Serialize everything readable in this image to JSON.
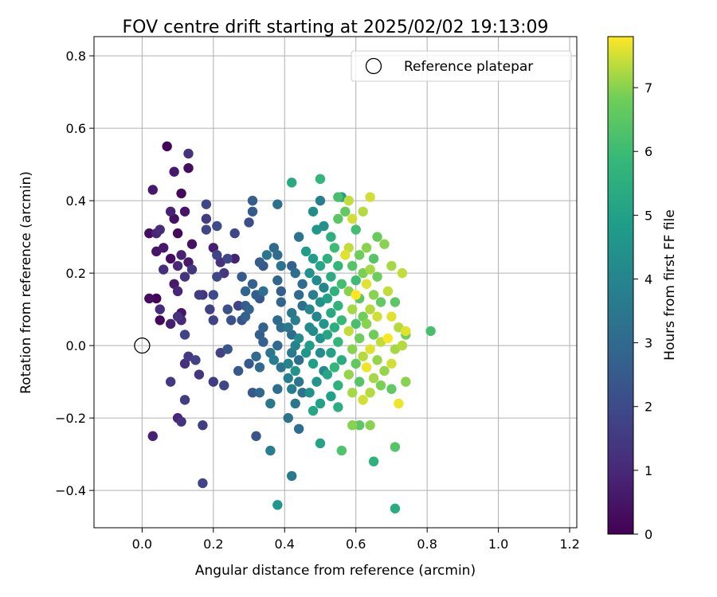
{
  "chart_data": {
    "type": "scatter",
    "title": "FOV centre drift starting at 2025/02/02 19:13:09",
    "xlabel": "Angular distance from reference (arcmin)",
    "ylabel": "Rotation from reference (arcmin)",
    "xlim": [
      -0.135,
      1.22
    ],
    "ylim": [
      -0.503,
      0.853
    ],
    "xticks": [
      0.0,
      0.2,
      0.4,
      0.6,
      0.8,
      1.0,
      1.2
    ],
    "xtick_labels": [
      "0.0",
      "0.2",
      "0.4",
      "0.6",
      "0.8",
      "1.0",
      "1.2"
    ],
    "yticks": [
      -0.4,
      -0.2,
      0.0,
      0.2,
      0.4,
      0.6,
      0.8
    ],
    "ytick_labels": [
      "−0.4",
      "−0.2",
      "0.0",
      "0.2",
      "0.4",
      "0.6",
      "0.8"
    ],
    "grid": true,
    "legend": {
      "placement": "top-right",
      "entries": [
        "Reference platepar"
      ]
    },
    "reference_point": {
      "name": "Reference platepar",
      "x": 0.0,
      "y": 0.0
    },
    "colorbar": {
      "label": "Hours from first FF file",
      "colormap": "viridis",
      "range": [
        0,
        7.8
      ],
      "ticks": [
        0,
        1,
        2,
        3,
        4,
        5,
        6,
        7
      ],
      "tick_labels": [
        "0",
        "1",
        "2",
        "3",
        "4",
        "5",
        "6",
        "7"
      ]
    },
    "points": [
      [
        0.07,
        0.55,
        0.1
      ],
      [
        0.13,
        0.53,
        1.3
      ],
      [
        0.13,
        0.49,
        0.3
      ],
      [
        0.09,
        0.48,
        0.6
      ],
      [
        0.11,
        0.42,
        0.2
      ],
      [
        0.03,
        0.43,
        0.6
      ],
      [
        0.08,
        0.37,
        0.8
      ],
      [
        0.12,
        0.37,
        0.5
      ],
      [
        0.09,
        0.35,
        0.4
      ],
      [
        0.04,
        0.31,
        0.9
      ],
      [
        0.05,
        0.32,
        1.1
      ],
      [
        0.02,
        0.31,
        0.3
      ],
      [
        0.1,
        0.31,
        0.2
      ],
      [
        0.14,
        0.28,
        0.4
      ],
      [
        0.06,
        0.27,
        0.6
      ],
      [
        0.04,
        0.26,
        0.5
      ],
      [
        0.11,
        0.25,
        0.8
      ],
      [
        0.08,
        0.24,
        0.3
      ],
      [
        0.13,
        0.23,
        0.6
      ],
      [
        0.1,
        0.22,
        1.0
      ],
      [
        0.14,
        0.21,
        1.4
      ],
      [
        0.06,
        0.21,
        1.2
      ],
      [
        0.12,
        0.19,
        1.3
      ],
      [
        0.09,
        0.17,
        0.6
      ],
      [
        0.1,
        0.15,
        0.9
      ],
      [
        0.02,
        0.13,
        0.3
      ],
      [
        0.04,
        0.13,
        0.1
      ],
      [
        0.05,
        0.1,
        1.1
      ],
      [
        0.08,
        0.06,
        0.7
      ],
      [
        0.11,
        0.09,
        0.5
      ],
      [
        0.05,
        0.07,
        0.2
      ],
      [
        0.11,
        0.07,
        1.0
      ],
      [
        0.12,
        0.03,
        1.8
      ],
      [
        0.1,
        0.08,
        1.3
      ],
      [
        0.13,
        -0.03,
        1.5
      ],
      [
        0.15,
        -0.04,
        1.7
      ],
      [
        0.12,
        -0.05,
        1.2
      ],
      [
        0.16,
        -0.08,
        1.4
      ],
      [
        0.08,
        -0.1,
        1.5
      ],
      [
        0.12,
        -0.15,
        1.6
      ],
      [
        0.1,
        -0.2,
        0.9
      ],
      [
        0.11,
        -0.21,
        1.3
      ],
      [
        0.03,
        -0.25,
        0.8
      ],
      [
        0.17,
        -0.22,
        1.6
      ],
      [
        0.18,
        0.39,
        1.9
      ],
      [
        0.18,
        0.35,
        1.6
      ],
      [
        0.21,
        0.33,
        2.0
      ],
      [
        0.18,
        0.32,
        1.9
      ],
      [
        0.26,
        0.31,
        1.9
      ],
      [
        0.2,
        0.27,
        0.7
      ],
      [
        0.21,
        0.25,
        1.8
      ],
      [
        0.24,
        0.24,
        1.9
      ],
      [
        0.22,
        0.23,
        1.3
      ],
      [
        0.26,
        0.24,
        0.8
      ],
      [
        0.23,
        0.2,
        1.4
      ],
      [
        0.21,
        0.19,
        1.9
      ],
      [
        0.17,
        0.14,
        1.3
      ],
      [
        0.16,
        0.14,
        1.6
      ],
      [
        0.2,
        0.14,
        2.0
      ],
      [
        0.24,
        0.1,
        2.2
      ],
      [
        0.27,
        0.11,
        1.8
      ],
      [
        0.29,
        0.11,
        2.6
      ],
      [
        0.19,
        0.1,
        1.7
      ],
      [
        0.2,
        0.07,
        1.8
      ],
      [
        0.25,
        0.07,
        2.2
      ],
      [
        0.28,
        0.07,
        2.3
      ],
      [
        0.24,
        -0.01,
        2.3
      ],
      [
        0.22,
        -0.02,
        1.7
      ],
      [
        0.27,
        -0.07,
        2.4
      ],
      [
        0.2,
        -0.1,
        1.6
      ],
      [
        0.23,
        -0.11,
        1.9
      ],
      [
        0.17,
        -0.38,
        1.8
      ],
      [
        0.31,
        0.4,
        2.6
      ],
      [
        0.31,
        0.37,
        2.5
      ],
      [
        0.3,
        0.34,
        2.1
      ],
      [
        0.35,
        0.25,
        3.4
      ],
      [
        0.33,
        0.23,
        2.6
      ],
      [
        0.34,
        0.22,
        2.4
      ],
      [
        0.28,
        0.19,
        2.5
      ],
      [
        0.31,
        0.17,
        2.7
      ],
      [
        0.29,
        0.15,
        2.9
      ],
      [
        0.34,
        0.15,
        3.2
      ],
      [
        0.32,
        0.14,
        2.6
      ],
      [
        0.33,
        0.13,
        2.4
      ],
      [
        0.3,
        0.1,
        2.8
      ],
      [
        0.29,
        0.08,
        2.7
      ],
      [
        0.34,
        0.05,
        2.8
      ],
      [
        0.33,
        0.03,
        2.6
      ],
      [
        0.34,
        0.01,
        2.7
      ],
      [
        0.32,
        -0.03,
        3.0
      ],
      [
        0.3,
        -0.05,
        2.5
      ],
      [
        0.33,
        -0.06,
        3.0
      ],
      [
        0.31,
        -0.13,
        2.4
      ],
      [
        0.33,
        -0.13,
        2.9
      ],
      [
        0.32,
        -0.25,
        2.3
      ],
      [
        0.38,
        0.39,
        3.2
      ],
      [
        0.37,
        0.27,
        3.0
      ],
      [
        0.38,
        0.25,
        3.1
      ],
      [
        0.39,
        0.22,
        3.3
      ],
      [
        0.38,
        0.18,
        2.9
      ],
      [
        0.39,
        0.15,
        2.6
      ],
      [
        0.39,
        0.12,
        2.9
      ],
      [
        0.38,
        0.07,
        3.0
      ],
      [
        0.39,
        0.05,
        3.2
      ],
      [
        0.38,
        0.0,
        3.0
      ],
      [
        0.36,
        -0.02,
        3.5
      ],
      [
        0.37,
        -0.04,
        3.7
      ],
      [
        0.39,
        -0.06,
        3.3
      ],
      [
        0.38,
        -0.12,
        3.1
      ],
      [
        0.36,
        -0.16,
        3.5
      ],
      [
        0.36,
        -0.29,
        3.7
      ],
      [
        0.38,
        -0.44,
        4.6
      ],
      [
        0.42,
        0.45,
        5.3
      ],
      [
        0.44,
        0.3,
        3.3
      ],
      [
        0.42,
        0.22,
        2.7
      ],
      [
        0.43,
        0.2,
        3.2
      ],
      [
        0.45,
        0.17,
        3.1
      ],
      [
        0.44,
        0.14,
        3.0
      ],
      [
        0.45,
        0.11,
        3.2
      ],
      [
        0.42,
        0.09,
        3.5
      ],
      [
        0.43,
        0.07,
        3.8
      ],
      [
        0.41,
        0.05,
        3.5
      ],
      [
        0.42,
        0.03,
        3.1
      ],
      [
        0.44,
        0.02,
        4.3
      ],
      [
        0.43,
        0.0,
        3.9
      ],
      [
        0.42,
        -0.02,
        3.6
      ],
      [
        0.44,
        -0.04,
        3.1
      ],
      [
        0.41,
        -0.05,
        4.0
      ],
      [
        0.43,
        -0.07,
        4.5
      ],
      [
        0.41,
        -0.09,
        3.8
      ],
      [
        0.44,
        -0.1,
        3.4
      ],
      [
        0.42,
        -0.12,
        3.8
      ],
      [
        0.45,
        -0.13,
        3.3
      ],
      [
        0.43,
        -0.16,
        3.4
      ],
      [
        0.41,
        -0.2,
        3.3
      ],
      [
        0.44,
        -0.23,
        3.1
      ],
      [
        0.42,
        -0.36,
        3.6
      ],
      [
        0.48,
        0.37,
        4.3
      ],
      [
        0.5,
        0.4,
        3.8
      ],
      [
        0.5,
        0.46,
        5.8
      ],
      [
        0.49,
        0.32,
        4.6
      ],
      [
        0.51,
        0.33,
        4.4
      ],
      [
        0.48,
        0.24,
        4.8
      ],
      [
        0.5,
        0.22,
        5.2
      ],
      [
        0.47,
        0.2,
        4.5
      ],
      [
        0.49,
        0.18,
        4.2
      ],
      [
        0.51,
        0.16,
        4.0
      ],
      [
        0.48,
        0.14,
        3.7
      ],
      [
        0.5,
        0.12,
        4.4
      ],
      [
        0.47,
        0.1,
        4.1
      ],
      [
        0.49,
        0.08,
        4.0
      ],
      [
        0.51,
        0.06,
        4.6
      ],
      [
        0.48,
        0.04,
        4.2
      ],
      [
        0.5,
        0.02,
        4.5
      ],
      [
        0.47,
        0.0,
        4.8
      ],
      [
        0.5,
        -0.02,
        4.3
      ],
      [
        0.48,
        -0.05,
        4.9
      ],
      [
        0.51,
        -0.07,
        4.1
      ],
      [
        0.49,
        -0.1,
        4.6
      ],
      [
        0.47,
        -0.13,
        4.4
      ],
      [
        0.5,
        -0.16,
        5.0
      ],
      [
        0.48,
        -0.18,
        5.2
      ],
      [
        0.5,
        -0.27,
        5.1
      ],
      [
        0.56,
        0.41,
        4.9
      ],
      [
        0.55,
        0.35,
        6.5
      ],
      [
        0.53,
        0.3,
        5.5
      ],
      [
        0.54,
        0.27,
        6.0
      ],
      [
        0.52,
        0.24,
        5.6
      ],
      [
        0.55,
        0.22,
        5.8
      ],
      [
        0.53,
        0.19,
        5.4
      ],
      [
        0.56,
        0.17,
        6.1
      ],
      [
        0.54,
        0.15,
        5.6
      ],
      [
        0.52,
        0.13,
        5.0
      ],
      [
        0.55,
        0.11,
        5.7
      ],
      [
        0.53,
        0.09,
        5.3
      ],
      [
        0.56,
        0.07,
        5.9
      ],
      [
        0.54,
        0.05,
        5.5
      ],
      [
        0.52,
        0.03,
        5.2
      ],
      [
        0.55,
        0.01,
        5.8
      ],
      [
        0.53,
        -0.02,
        5.0
      ],
      [
        0.56,
        -0.04,
        5.4
      ],
      [
        0.54,
        -0.06,
        5.8
      ],
      [
        0.52,
        -0.08,
        5.2
      ],
      [
        0.55,
        -0.11,
        5.6
      ],
      [
        0.53,
        -0.14,
        4.9
      ],
      [
        0.55,
        -0.17,
        5.5
      ],
      [
        0.56,
        -0.29,
        6.3
      ],
      [
        0.58,
        0.4,
        7.4
      ],
      [
        0.59,
        0.35,
        7.5
      ],
      [
        0.6,
        0.32,
        6.1
      ],
      [
        0.58,
        0.27,
        7.4
      ],
      [
        0.61,
        0.25,
        6.8
      ],
      [
        0.59,
        0.22,
        6.4
      ],
      [
        0.62,
        0.2,
        6.9
      ],
      [
        0.6,
        0.18,
        6.0
      ],
      [
        0.58,
        0.15,
        7.0
      ],
      [
        0.61,
        0.13,
        6.5
      ],
      [
        0.59,
        0.1,
        7.2
      ],
      [
        0.62,
        0.08,
        6.8
      ],
      [
        0.6,
        0.06,
        6.2
      ],
      [
        0.58,
        0.04,
        7.4
      ],
      [
        0.61,
        0.02,
        6.8
      ],
      [
        0.59,
        -0.01,
        7.0
      ],
      [
        0.62,
        -0.03,
        7.3
      ],
      [
        0.6,
        -0.05,
        6.6
      ],
      [
        0.58,
        -0.08,
        7.1
      ],
      [
        0.61,
        -0.1,
        6.4
      ],
      [
        0.59,
        -0.13,
        7.2
      ],
      [
        0.62,
        -0.15,
        7.5
      ],
      [
        0.59,
        -0.22,
        7.0
      ],
      [
        0.61,
        -0.22,
        6.5
      ],
      [
        0.64,
        0.41,
        7.5
      ],
      [
        0.62,
        0.37,
        7.3
      ],
      [
        0.66,
        0.3,
        6.7
      ],
      [
        0.63,
        0.27,
        7.0
      ],
      [
        0.65,
        0.24,
        6.4
      ],
      [
        0.64,
        0.21,
        7.2
      ],
      [
        0.66,
        0.19,
        6.8
      ],
      [
        0.63,
        0.17,
        7.6
      ],
      [
        0.65,
        0.14,
        7.0
      ],
      [
        0.67,
        0.12,
        6.6
      ],
      [
        0.64,
        0.1,
        7.3
      ],
      [
        0.66,
        0.08,
        7.5
      ],
      [
        0.63,
        0.06,
        7.0
      ],
      [
        0.65,
        0.03,
        6.8
      ],
      [
        0.67,
        0.01,
        7.4
      ],
      [
        0.64,
        -0.01,
        7.6
      ],
      [
        0.66,
        -0.04,
        7.1
      ],
      [
        0.63,
        -0.06,
        7.7
      ],
      [
        0.65,
        -0.09,
        7.2
      ],
      [
        0.67,
        -0.11,
        6.9
      ],
      [
        0.64,
        -0.13,
        7.3
      ],
      [
        0.64,
        -0.22,
        7.0
      ],
      [
        0.65,
        -0.32,
        5.6
      ],
      [
        0.68,
        0.28,
        7.0
      ],
      [
        0.7,
        0.22,
        7.2
      ],
      [
        0.69,
        0.15,
        7.4
      ],
      [
        0.71,
        0.12,
        6.5
      ],
      [
        0.7,
        0.08,
        7.6
      ],
      [
        0.72,
        0.05,
        7.3
      ],
      [
        0.69,
        0.02,
        7.8
      ],
      [
        0.71,
        -0.01,
        7.2
      ],
      [
        0.7,
        -0.05,
        7.5
      ],
      [
        0.68,
        -0.07,
        7.1
      ],
      [
        0.7,
        -0.12,
        6.6
      ],
      [
        0.72,
        -0.16,
        7.7
      ],
      [
        0.71,
        -0.28,
        6.4
      ],
      [
        0.73,
        0.2,
        7.4
      ],
      [
        0.74,
        0.04,
        7.6
      ],
      [
        0.73,
        0.0,
        7.3
      ],
      [
        0.74,
        0.03,
        6.8
      ],
      [
        0.74,
        -0.1,
        7.0
      ],
      [
        0.81,
        0.04,
        6.2
      ],
      [
        0.71,
        -0.45,
        5.4
      ],
      [
        0.55,
        0.41,
        6.2
      ],
      [
        0.57,
        0.37,
        6.6
      ],
      [
        0.57,
        0.25,
        7.6
      ],
      [
        0.46,
        0.26,
        4.8
      ],
      [
        0.47,
        0.05,
        4.1
      ],
      [
        0.46,
        -0.02,
        4.6
      ],
      [
        0.6,
        0.14,
        7.8
      ]
    ]
  }
}
